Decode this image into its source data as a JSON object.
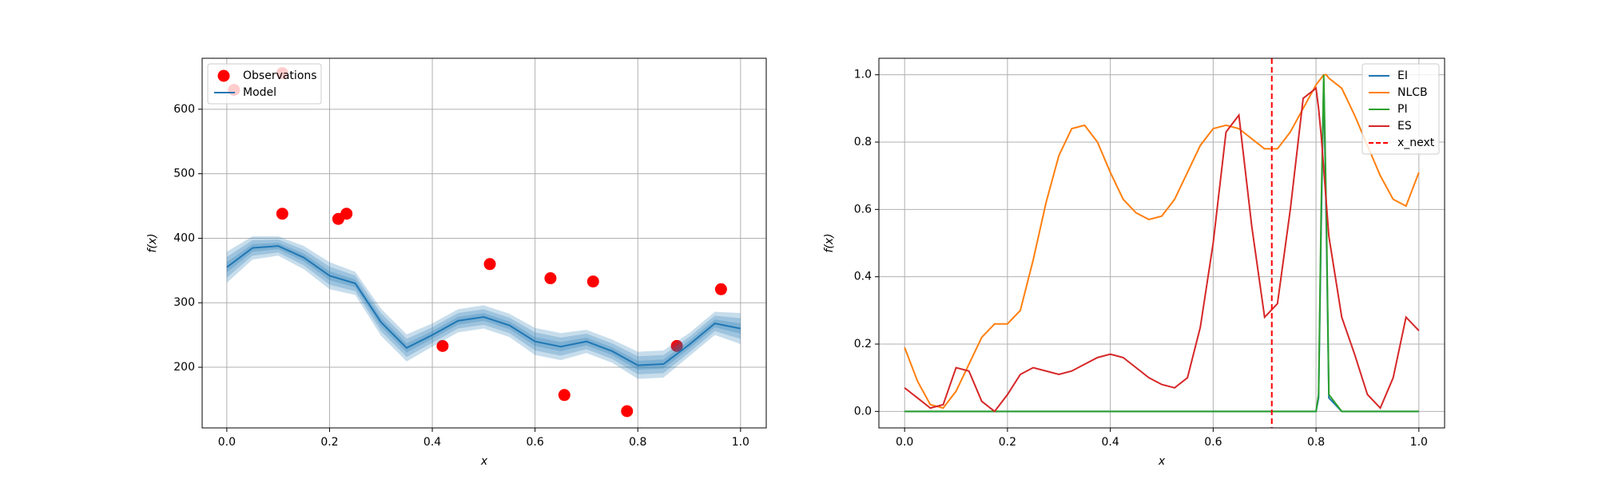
{
  "chart_data": [
    {
      "type": "scatter",
      "xlabel": "x",
      "ylabel": "f(x)",
      "grid": true,
      "legend": "upper left",
      "xlim": [
        -0.048,
        1.05
      ],
      "ylim": [
        106,
        679
      ],
      "xticks": [
        {
          "value": 0,
          "label": "0.0"
        },
        {
          "value": 0.2,
          "label": "0.2"
        },
        {
          "value": 0.4,
          "label": "0.4"
        },
        {
          "value": 0.6,
          "label": "0.6"
        },
        {
          "value": 0.8,
          "label": "0.8"
        },
        {
          "value": 1,
          "label": "1.0"
        }
      ],
      "yticks": [
        200,
        300,
        400,
        500,
        600
      ],
      "series": [
        {
          "name": "Observations",
          "color": "#ff0000",
          "x": [
            0.014,
            0.108,
            0.108,
            0.217,
            0.233,
            0.42,
            0.512,
            0.63,
            0.657,
            0.713,
            0.779,
            0.876,
            0.962
          ],
          "values": [
            630,
            656,
            438,
            430,
            438,
            233,
            360,
            338,
            157,
            333,
            132,
            233,
            321
          ]
        },
        {
          "name": "Model",
          "type": "line",
          "color": "#1f77b4",
          "x": [
            0,
            0.05,
            0.1,
            0.15,
            0.2,
            0.25,
            0.3,
            0.35,
            0.4,
            0.45,
            0.5,
            0.55,
            0.6,
            0.65,
            0.7,
            0.75,
            0.8,
            0.85,
            0.9,
            0.95,
            1
          ],
          "values": [
            355,
            385,
            388,
            370,
            342,
            330,
            270,
            230,
            250,
            272,
            278,
            265,
            240,
            232,
            240,
            225,
            203,
            205,
            235,
            268,
            260
          ],
          "std": [
            8,
            6,
            5,
            6,
            7,
            6,
            7,
            7,
            6,
            6,
            6,
            6,
            7,
            7,
            6,
            6,
            7,
            7,
            6,
            6,
            8
          ]
        }
      ]
    },
    {
      "type": "line",
      "xlabel": "x",
      "ylabel": "f(x)",
      "grid": true,
      "legend": "upper right",
      "xlim": [
        -0.05,
        1.05
      ],
      "ylim": [
        -0.049,
        1.049
      ],
      "xticks": [
        {
          "value": 0,
          "label": "0.0"
        },
        {
          "value": 0.2,
          "label": "0.2"
        },
        {
          "value": 0.4,
          "label": "0.4"
        },
        {
          "value": 0.6,
          "label": "0.6"
        },
        {
          "value": 0.8,
          "label": "0.8"
        },
        {
          "value": 1,
          "label": "1.0"
        }
      ],
      "yticks": [
        {
          "value": 0,
          "label": "0.0"
        },
        {
          "value": 0.2,
          "label": "0.2"
        },
        {
          "value": 0.4,
          "label": "0.4"
        },
        {
          "value": 0.6,
          "label": "0.6"
        },
        {
          "value": 0.8,
          "label": "0.8"
        },
        {
          "value": 1,
          "label": "1.0"
        }
      ],
      "x": [
        0,
        0.025,
        0.05,
        0.075,
        0.1,
        0.125,
        0.15,
        0.175,
        0.2,
        0.225,
        0.25,
        0.275,
        0.3,
        0.325,
        0.35,
        0.375,
        0.4,
        0.425,
        0.45,
        0.475,
        0.5,
        0.525,
        0.55,
        0.575,
        0.6,
        0.625,
        0.65,
        0.675,
        0.7,
        0.725,
        0.75,
        0.775,
        0.8,
        0.805,
        0.81,
        0.815,
        0.82,
        0.825,
        0.85,
        0.875,
        0.9,
        0.925,
        0.95,
        0.975,
        1
      ],
      "series": [
        {
          "name": "EI",
          "color": "#1f77b4",
          "values": [
            0,
            0,
            0,
            0,
            0,
            0,
            0,
            0,
            0,
            0,
            0,
            0,
            0,
            0,
            0,
            0,
            0,
            0,
            0,
            0,
            0,
            0,
            0,
            0,
            0,
            0,
            0,
            0,
            0,
            0,
            0,
            0,
            0,
            0.04,
            0.55,
            0.98,
            0.55,
            0.04,
            0,
            0,
            0,
            0,
            0,
            0,
            0
          ]
        },
        {
          "name": "NLCB",
          "color": "#ff7f0e",
          "values": [
            0.19,
            0.09,
            0.02,
            0.01,
            0.06,
            0.14,
            0.22,
            0.26,
            0.26,
            0.3,
            0.45,
            0.62,
            0.76,
            0.84,
            0.85,
            0.8,
            0.71,
            0.63,
            0.59,
            0.57,
            0.58,
            0.63,
            0.71,
            0.79,
            0.84,
            0.85,
            0.84,
            0.81,
            0.78,
            0.78,
            0.83,
            0.9,
            0.97,
            0.98,
            0.99,
            1.0,
            1.0,
            0.99,
            0.96,
            0.88,
            0.79,
            0.7,
            0.63,
            0.61,
            0.71
          ]
        },
        {
          "name": "PI",
          "color": "#2ca02c",
          "values": [
            0,
            0,
            0,
            0,
            0,
            0,
            0,
            0,
            0,
            0,
            0,
            0,
            0,
            0,
            0,
            0,
            0,
            0,
            0,
            0,
            0,
            0,
            0,
            0,
            0,
            0,
            0,
            0,
            0,
            0,
            0,
            0,
            0,
            0.05,
            0.6,
            1.0,
            0.6,
            0.05,
            0,
            0,
            0,
            0,
            0,
            0,
            0
          ]
        },
        {
          "name": "ES",
          "color": "#d62728",
          "values": [
            0.07,
            0.04,
            0.01,
            0.02,
            0.13,
            0.12,
            0.03,
            0.0,
            0.05,
            0.11,
            0.13,
            0.12,
            0.11,
            0.12,
            0.14,
            0.16,
            0.17,
            0.16,
            0.13,
            0.1,
            0.08,
            0.07,
            0.1,
            0.25,
            0.5,
            0.83,
            0.88,
            0.55,
            0.28,
            0.32,
            0.6,
            0.93,
            0.96,
            0.9,
            0.82,
            0.72,
            0.62,
            0.52,
            0.28,
            0.17,
            0.05,
            0.01,
            0.1,
            0.28,
            0.24
          ]
        }
      ],
      "vlines": [
        {
          "name": "x_next",
          "x": 0.714,
          "color": "#ff0000",
          "dashed": true
        }
      ]
    }
  ]
}
